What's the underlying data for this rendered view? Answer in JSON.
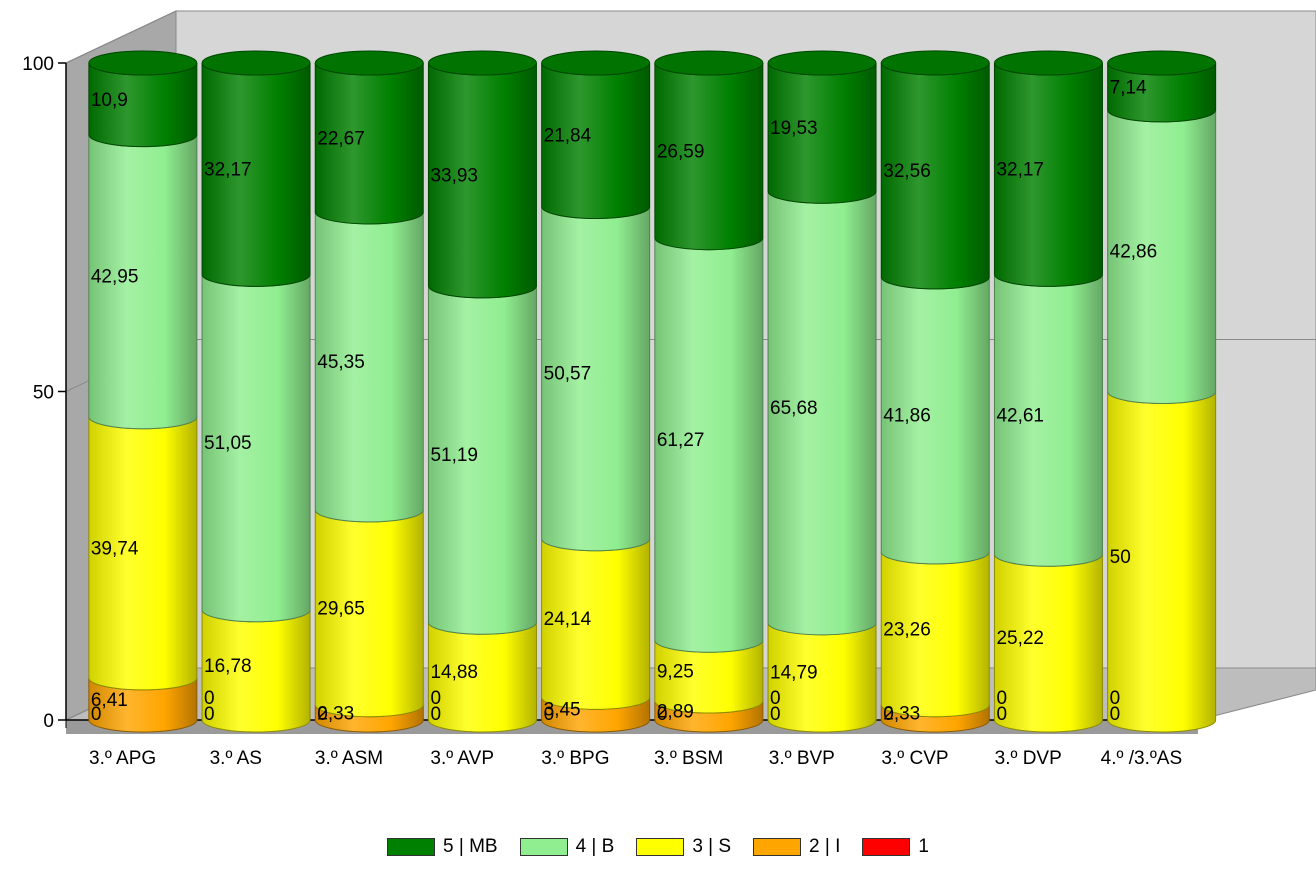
{
  "chart_data": {
    "type": "bar",
    "stacked": true,
    "three_d": true,
    "bar_shape": "cylinder",
    "ylim": [
      0,
      100
    ],
    "yticks": [
      0,
      50,
      100
    ],
    "ytick_labels": [
      "0",
      "50",
      "100"
    ],
    "categories": [
      "3.º APG",
      "3.º AS",
      "3.º ASM",
      "3.º AVP",
      "3.º BPG",
      "3.º BSM",
      "3.º BVP",
      "3.º CVP",
      "3.º DVP",
      "4.º /3.ºAS"
    ],
    "series": [
      {
        "name": "1",
        "color": "#ff0000",
        "values": [
          0,
          0,
          0,
          0,
          0,
          0,
          0,
          0,
          0,
          0
        ],
        "labels": [
          "0",
          "0",
          "0",
          "0",
          "0",
          "0",
          "0",
          "0",
          "0",
          "0"
        ]
      },
      {
        "name": "2 | I",
        "color": "#ffa500",
        "values": [
          6.41,
          0,
          2.33,
          0,
          3.45,
          2.89,
          0,
          2.33,
          0,
          0
        ],
        "labels": [
          "6,41",
          "0",
          "2,33",
          "0",
          "3,45",
          "2,89",
          "0",
          "2,33",
          "0",
          "0"
        ]
      },
      {
        "name": "3 | S",
        "color": "#ffff00",
        "values": [
          39.74,
          16.78,
          29.65,
          14.88,
          24.14,
          9.25,
          14.79,
          23.26,
          25.22,
          50
        ],
        "labels": [
          "39,74",
          "16,78",
          "29,65",
          "14,88",
          "24,14",
          "9,25",
          "14,79",
          "23,26",
          "25,22",
          "50"
        ]
      },
      {
        "name": "4 | B",
        "color": "#90ee90",
        "values": [
          42.95,
          51.05,
          45.35,
          51.19,
          50.57,
          61.27,
          65.68,
          41.86,
          42.61,
          42.86
        ],
        "labels": [
          "42,95",
          "51,05",
          "45,35",
          "51,19",
          "50,57",
          "61,27",
          "65,68",
          "41,86",
          "42,61",
          "42,86"
        ]
      },
      {
        "name": "5 | MB",
        "color": "#008000",
        "values": [
          10.9,
          32.17,
          22.67,
          33.93,
          21.84,
          26.59,
          19.53,
          32.56,
          32.17,
          7.14
        ],
        "labels": [
          "10,9",
          "32,17",
          "22,67",
          "33,93",
          "21,84",
          "26,59",
          "19,53",
          "32,56",
          "32,17",
          "7,14"
        ]
      }
    ],
    "legend": {
      "position": "bottom-center",
      "order": [
        4,
        3,
        2,
        1,
        0
      ]
    }
  }
}
